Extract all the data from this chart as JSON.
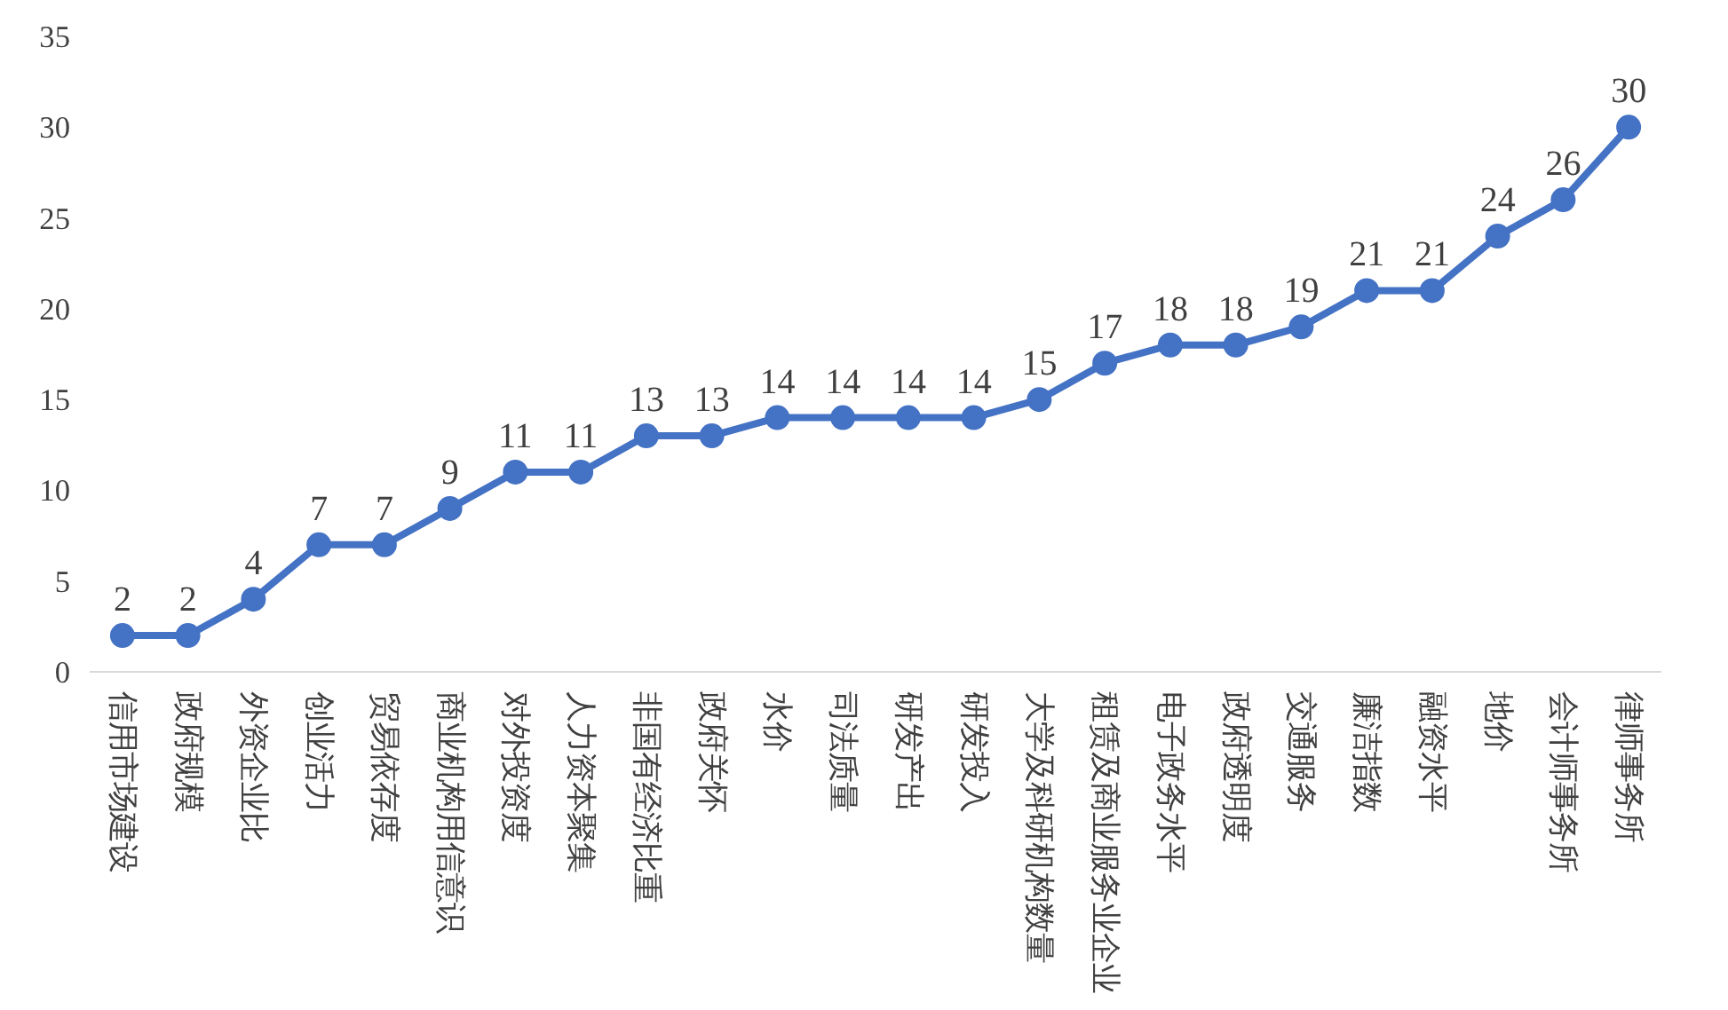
{
  "chart_data": {
    "type": "line",
    "categories": [
      "信用市场建设",
      "政府规模",
      "外资企业比",
      "创业活力",
      "贸易依存度",
      "商业机构用信意识",
      "对外投资度",
      "人力资本聚集",
      "非国有经济比重",
      "政府关怀",
      "水价",
      "司法质量",
      "研发产出",
      "研发投入",
      "大学及科研机构数量",
      "租赁及商业服务业企业",
      "电子政务水平",
      "政府透明度",
      "交通服务",
      "廉洁指数",
      "融资水平",
      "地价",
      "会计师事务所",
      "律师事务所"
    ],
    "series": [
      {
        "color": "#4472c4",
        "values": [
          2,
          2,
          4,
          7,
          7,
          9,
          11,
          11,
          13,
          13,
          14,
          14,
          14,
          14,
          15,
          17,
          18,
          18,
          19,
          21,
          21,
          24,
          26,
          30
        ]
      }
    ],
    "ylim": [
      0,
      35
    ],
    "yticks": [
      0,
      5,
      10,
      15,
      20,
      25,
      30,
      35
    ],
    "grid": false,
    "marker": "circle",
    "line_style": "solid",
    "data_labels": true
  }
}
